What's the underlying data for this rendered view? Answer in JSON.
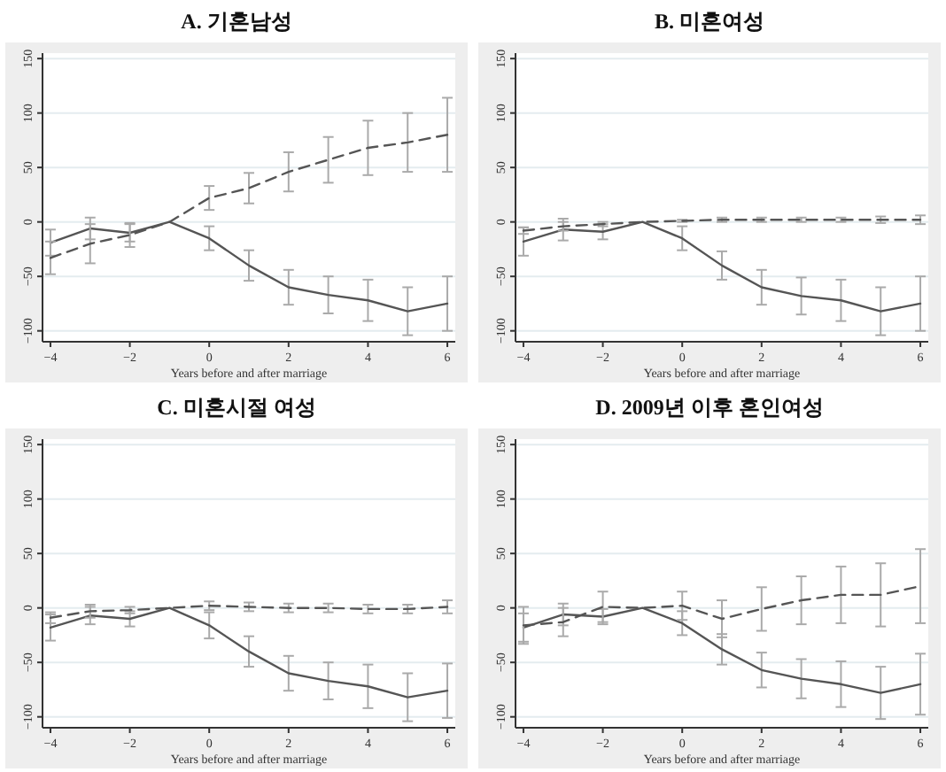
{
  "chart_data": [
    {
      "type": "line",
      "title": "A. 기혼남성",
      "xlabel": "Years before and after marriage",
      "x": [
        -4,
        -3,
        -2,
        -1,
        0,
        1,
        2,
        3,
        4,
        5,
        6
      ],
      "xlim": [
        -4.2,
        6.2
      ],
      "xticks": [
        -4,
        -2,
        0,
        2,
        4,
        6
      ],
      "ylim": [
        -110,
        155
      ],
      "yticks": [
        -100,
        -50,
        0,
        50,
        100,
        150
      ],
      "grid": "y",
      "marker": "none",
      "series": [
        {
          "color": "#555555",
          "line_style": "solid",
          "values": [
            -19,
            -6,
            -10,
            0,
            -15,
            -40,
            -60,
            -67,
            -72,
            -82,
            -75
          ],
          "errors": [
            12,
            10,
            8,
            null,
            11,
            14,
            16,
            17,
            19,
            22,
            25
          ]
        },
        {
          "color": "#555555",
          "line_style": "dashed",
          "values": [
            -33,
            -20,
            -12,
            0,
            22,
            31,
            46,
            57,
            68,
            73,
            80
          ],
          "errors": [
            15,
            18,
            11,
            null,
            11,
            14,
            18,
            21,
            25,
            27,
            34
          ]
        }
      ]
    },
    {
      "type": "line",
      "title": "B. 미혼여성",
      "xlabel": "Years before and after marriage",
      "x": [
        -4,
        -3,
        -2,
        -1,
        0,
        1,
        2,
        3,
        4,
        5,
        6
      ],
      "xlim": [
        -4.2,
        6.2
      ],
      "xticks": [
        -4,
        -2,
        0,
        2,
        4,
        6
      ],
      "ylim": [
        -110,
        155
      ],
      "yticks": [
        -100,
        -50,
        0,
        50,
        100,
        150
      ],
      "grid": "y",
      "marker": "none",
      "series": [
        {
          "color": "#555555",
          "line_style": "solid",
          "values": [
            -18,
            -7,
            -9,
            0,
            -15,
            -40,
            -60,
            -68,
            -72,
            -82,
            -75
          ],
          "errors": [
            13,
            10,
            7,
            null,
            11,
            13,
            16,
            17,
            19,
            22,
            25
          ]
        },
        {
          "color": "#555555",
          "line_style": "dashed",
          "values": [
            -8,
            -4,
            -2,
            0,
            1,
            2,
            2,
            2,
            2,
            2,
            2
          ],
          "errors": [
            3,
            4,
            2,
            null,
            1,
            2,
            2,
            2,
            2,
            3,
            4
          ]
        }
      ]
    },
    {
      "type": "line",
      "title": "C. 미혼시절 여성",
      "xlabel": "Years before and after marriage",
      "x": [
        -4,
        -3,
        -2,
        -1,
        0,
        1,
        2,
        3,
        4,
        5,
        6
      ],
      "xlim": [
        -4.2,
        6.2
      ],
      "xticks": [
        -4,
        -2,
        0,
        2,
        4,
        6
      ],
      "ylim": [
        -110,
        155
      ],
      "yticks": [
        -100,
        -50,
        0,
        50,
        100,
        150
      ],
      "grid": "y",
      "marker": "none",
      "series": [
        {
          "color": "#555555",
          "line_style": "solid",
          "values": [
            -18,
            -7,
            -10,
            0,
            -16,
            -40,
            -60,
            -67,
            -72,
            -82,
            -76
          ],
          "errors": [
            12,
            8,
            7,
            null,
            12,
            14,
            16,
            17,
            20,
            22,
            25
          ]
        },
        {
          "color": "#555555",
          "line_style": "dashed",
          "values": [
            -9,
            -3,
            -2,
            0,
            2,
            1,
            0,
            0,
            -1,
            -1,
            1
          ],
          "errors": [
            5,
            6,
            3,
            null,
            4,
            4,
            4,
            4,
            4,
            4,
            6
          ]
        }
      ]
    },
    {
      "type": "line",
      "title": "D. 2009년 이후 혼인여성",
      "xlabel": "Years before and after marriage",
      "x": [
        -4,
        -3,
        -2,
        -1,
        0,
        1,
        2,
        3,
        4,
        5,
        6
      ],
      "xlim": [
        -4.2,
        6.2
      ],
      "xticks": [
        -4,
        -2,
        0,
        2,
        4,
        6
      ],
      "ylim": [
        -110,
        155
      ],
      "yticks": [
        -100,
        -50,
        0,
        50,
        100,
        150
      ],
      "grid": "y",
      "marker": "none",
      "series": [
        {
          "color": "#555555",
          "line_style": "solid",
          "values": [
            -18,
            -6,
            -8,
            0,
            -14,
            -38,
            -57,
            -65,
            -70,
            -78,
            -70
          ],
          "errors": [
            13,
            10,
            7,
            null,
            11,
            14,
            16,
            18,
            21,
            24,
            28
          ]
        },
        {
          "color": "#555555",
          "line_style": "dashed",
          "values": [
            -16,
            -13,
            1,
            0,
            2,
            -10,
            -1,
            7,
            12,
            12,
            20
          ],
          "errors": [
            17,
            13,
            14,
            null,
            13,
            17,
            20,
            22,
            26,
            29,
            34
          ]
        }
      ]
    }
  ]
}
